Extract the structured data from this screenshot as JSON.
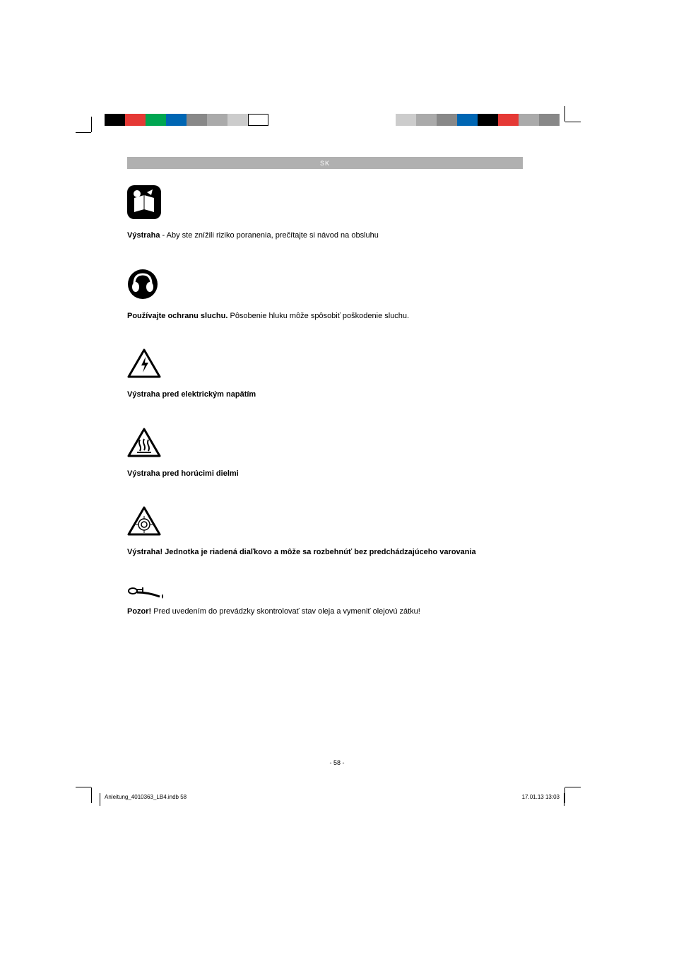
{
  "header": {
    "language_code": "SK"
  },
  "registration_marks": {
    "left_colors": [
      "#000000",
      "#e53935",
      "#00a651",
      "#0066b3",
      "#888888",
      "#aaaaaa",
      "#cccccc",
      "#ffffff"
    ],
    "right_colors": [
      "#cccccc",
      "#aaaaaa",
      "#888888",
      "#0066b3",
      "#000000",
      "#e53935",
      "#aaaaaa",
      "#888888"
    ],
    "left_border": true,
    "square_width": 29,
    "square_height": 17
  },
  "warnings": [
    {
      "icon_type": "read-manual",
      "bold_text": "Výstraha",
      "text": " - Aby ste znížili riziko poranenia, prečítajte si návod na obsluhu"
    },
    {
      "icon_type": "hearing-protection",
      "bold_text": "Používajte ochranu sluchu.",
      "text": " Pôsobenie hluku môže spôsobiť poškodenie sluchu."
    },
    {
      "icon_type": "electrical-hazard",
      "bold_text": "Výstraha pred elektrickým napätím",
      "text": ""
    },
    {
      "icon_type": "hot-surface",
      "bold_text": "Výstraha pred horúcimi dielmi",
      "text": ""
    },
    {
      "icon_type": "remote-start",
      "bold_text": "Výstraha! Jednotka je riadená diaľkovo a môže sa rozbehnúť bez predchádzajúceho varovania",
      "text": ""
    },
    {
      "icon_type": "oil-check",
      "bold_text": "Pozor!",
      "text": " Pred uvedením do prevádzky skontrolovať stav oleja a vymeniť olejovú zátku!"
    }
  ],
  "footer": {
    "page_number": "- 58 -",
    "file_info": "Anleitung_4010363_LB4.indb   58",
    "datetime": "17.01.13   13:03"
  },
  "styling": {
    "body_width": 954,
    "body_height": 1351,
    "background_color": "#ffffff",
    "header_bar_color": "#b0b0b0",
    "header_text_color": "#ffffff",
    "content_text_color": "#000000",
    "warning_text_fontsize": 11,
    "footer_fontsize": 8,
    "page_number_fontsize": 9
  }
}
